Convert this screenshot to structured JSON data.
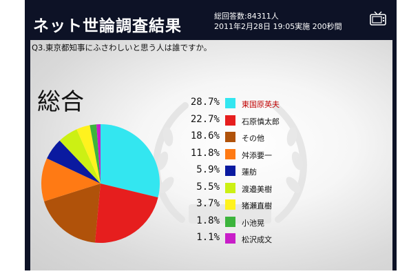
{
  "header": {
    "title": "ネット世論調査結果",
    "total_responses": "総回答数:84311人",
    "poll_info": "2011年2月28日 19:05実施 200秒間",
    "icon": "tv-icon"
  },
  "question": "Q3.東京都知事にふさわしいと思う人は誰ですか。",
  "section_label": "総合",
  "colors": {
    "header_bg": "#0d1226",
    "highlight_text": "#c00000"
  },
  "legend": [
    {
      "pct": "28.7%",
      "name": "東国原英夫",
      "color": "#33e6f0",
      "highlight": true
    },
    {
      "pct": "22.7%",
      "name": "石原慎太郎",
      "color": "#e61e1e",
      "highlight": false
    },
    {
      "pct": "18.6%",
      "name": "その他",
      "color": "#b0520a",
      "highlight": false
    },
    {
      "pct": "11.8%",
      "name": "舛添要一",
      "color": "#ff7a14",
      "highlight": false
    },
    {
      "pct": "5.9%",
      "name": "蓮舫",
      "color": "#0a1aa0",
      "highlight": false
    },
    {
      "pct": "5.5%",
      "name": "渡邉美樹",
      "color": "#ccf014",
      "highlight": false
    },
    {
      "pct": "3.7%",
      "name": "猪瀬直樹",
      "color": "#fff21e",
      "highlight": false
    },
    {
      "pct": "1.8%",
      "name": "小池晃",
      "color": "#3cb43c",
      "highlight": false
    },
    {
      "pct": "1.1%",
      "name": "松沢成文",
      "color": "#c81ec8",
      "highlight": false
    }
  ],
  "chart_data": {
    "type": "pie",
    "categories": [
      "東国原英夫",
      "石原慎太郎",
      "その他",
      "舛添要一",
      "蓮舫",
      "渡邉美樹",
      "猪瀬直樹",
      "小池晃",
      "松沢成文"
    ],
    "values": [
      28.7,
      22.7,
      18.6,
      11.8,
      5.9,
      5.5,
      3.7,
      1.8,
      1.1
    ],
    "colors": [
      "#33e6f0",
      "#e61e1e",
      "#b0520a",
      "#ff7a14",
      "#0a1aa0",
      "#ccf014",
      "#fff21e",
      "#3cb43c",
      "#c81ec8"
    ],
    "title": "総合",
    "start": "12 o'clock",
    "direction": "clockwise"
  }
}
